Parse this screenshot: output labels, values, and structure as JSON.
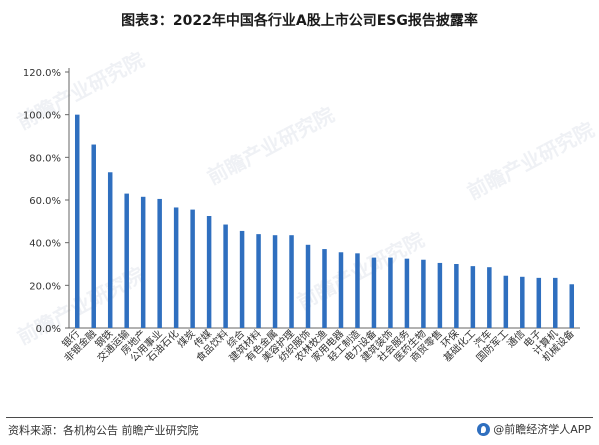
{
  "title": "图表3：2022年中国各行业A股上市公司ESG报告披露率",
  "source": "资料来源：各机构公告 前瞻产业研究院",
  "brand": "@前瞻经济学人APP",
  "watermark": "前瞻产业研究院",
  "colors": {
    "bar": "#2f6fbf",
    "axis": "#666666",
    "grid": "#d9d9d9"
  },
  "chart_data": {
    "type": "bar",
    "ylim": [
      0,
      120
    ],
    "yticks": [
      "0.0%",
      "20.0%",
      "40.0%",
      "60.0%",
      "80.0%",
      "100.0%",
      "120.0%"
    ],
    "grid": false,
    "categories": [
      "银行",
      "非银金融",
      "钢铁",
      "交通运输",
      "房地产",
      "公用事业",
      "石油石化",
      "煤炭",
      "传媒",
      "食品饮料",
      "综合",
      "建筑材料",
      "有色金属",
      "美容护理",
      "纺织服饰",
      "农林牧渔",
      "家用电器",
      "轻工制造",
      "电力设备",
      "建筑装饰",
      "社会服务",
      "医药生物",
      "商贸零售",
      "环保",
      "基础化工",
      "汽车",
      "国防军工",
      "通信",
      "电子",
      "计算机",
      "机械设备"
    ],
    "values": [
      100.0,
      86.0,
      73.0,
      63.0,
      61.5,
      60.5,
      56.5,
      55.5,
      52.5,
      48.5,
      45.5,
      44.0,
      43.5,
      43.5,
      39.0,
      37.0,
      35.5,
      35.0,
      33.0,
      33.0,
      32.5,
      32.0,
      30.5,
      30.0,
      29.0,
      28.5,
      24.5,
      24.0,
      23.5,
      23.5,
      20.5
    ]
  }
}
